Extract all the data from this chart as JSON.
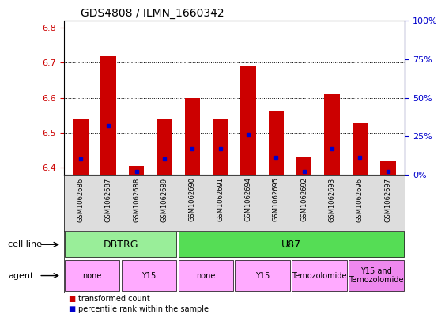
{
  "title": "GDS4808 / ILMN_1660342",
  "samples": [
    "GSM1062686",
    "GSM1062687",
    "GSM1062688",
    "GSM1062689",
    "GSM1062690",
    "GSM1062691",
    "GSM1062694",
    "GSM1062695",
    "GSM1062692",
    "GSM1062693",
    "GSM1062696",
    "GSM1062697"
  ],
  "transformed_count": [
    6.54,
    6.72,
    6.405,
    6.54,
    6.6,
    6.54,
    6.69,
    6.56,
    6.43,
    6.61,
    6.53,
    6.42
  ],
  "percentile_rank": [
    10,
    32,
    2,
    10,
    17,
    17,
    26,
    11,
    2,
    17,
    11,
    2
  ],
  "ylim_left": [
    6.38,
    6.82
  ],
  "ylim_right": [
    0,
    100
  ],
  "yticks_left": [
    6.4,
    6.5,
    6.6,
    6.7,
    6.8
  ],
  "yticks_right": [
    0,
    25,
    50,
    75,
    100
  ],
  "bar_color": "#cc0000",
  "dot_color": "#0000cc",
  "bar_width": 0.55,
  "bar_base": 6.38,
  "cell_line_groups": [
    {
      "label": "DBTRG",
      "start": 0,
      "end": 4,
      "color": "#99ee99"
    },
    {
      "label": "U87",
      "start": 4,
      "end": 12,
      "color": "#55dd55"
    }
  ],
  "agent_groups": [
    {
      "label": "none",
      "start": 0,
      "end": 2,
      "color": "#ffaaff"
    },
    {
      "label": "Y15",
      "start": 2,
      "end": 4,
      "color": "#ffaaff"
    },
    {
      "label": "none",
      "start": 4,
      "end": 6,
      "color": "#ffaaff"
    },
    {
      "label": "Y15",
      "start": 6,
      "end": 8,
      "color": "#ffaaff"
    },
    {
      "label": "Temozolomide",
      "start": 8,
      "end": 10,
      "color": "#ffaaff"
    },
    {
      "label": "Y15 and\nTemozolomide",
      "start": 10,
      "end": 12,
      "color": "#ee88ee"
    }
  ],
  "legend_items": [
    {
      "label": "transformed count",
      "color": "#cc0000"
    },
    {
      "label": "percentile rank within the sample",
      "color": "#0000cc"
    }
  ],
  "bg_color": "#ffffff",
  "tick_label_color_left": "#cc0000",
  "tick_label_color_right": "#0000cc",
  "cell_line_label": "cell line",
  "agent_label": "agent",
  "sample_bg_color": "#dddddd"
}
